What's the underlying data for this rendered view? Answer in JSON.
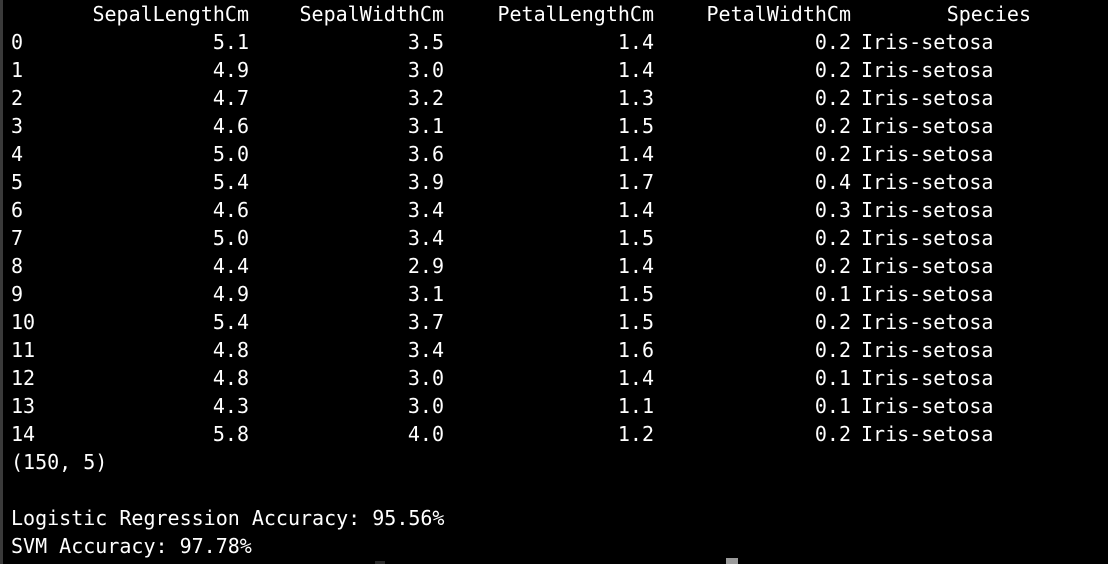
{
  "table": {
    "columns": [
      "SepalLengthCm",
      "SepalWidthCm",
      "PetalLengthCm",
      "PetalWidthCm",
      "Species"
    ],
    "rows": [
      {
        "index": "0",
        "sl": "5.1",
        "sw": "3.5",
        "pl": "1.4",
        "pw": "0.2",
        "species": "Iris-setosa"
      },
      {
        "index": "1",
        "sl": "4.9",
        "sw": "3.0",
        "pl": "1.4",
        "pw": "0.2",
        "species": "Iris-setosa"
      },
      {
        "index": "2",
        "sl": "4.7",
        "sw": "3.2",
        "pl": "1.3",
        "pw": "0.2",
        "species": "Iris-setosa"
      },
      {
        "index": "3",
        "sl": "4.6",
        "sw": "3.1",
        "pl": "1.5",
        "pw": "0.2",
        "species": "Iris-setosa"
      },
      {
        "index": "4",
        "sl": "5.0",
        "sw": "3.6",
        "pl": "1.4",
        "pw": "0.2",
        "species": "Iris-setosa"
      },
      {
        "index": "5",
        "sl": "5.4",
        "sw": "3.9",
        "pl": "1.7",
        "pw": "0.4",
        "species": "Iris-setosa"
      },
      {
        "index": "6",
        "sl": "4.6",
        "sw": "3.4",
        "pl": "1.4",
        "pw": "0.3",
        "species": "Iris-setosa"
      },
      {
        "index": "7",
        "sl": "5.0",
        "sw": "3.4",
        "pl": "1.5",
        "pw": "0.2",
        "species": "Iris-setosa"
      },
      {
        "index": "8",
        "sl": "4.4",
        "sw": "2.9",
        "pl": "1.4",
        "pw": "0.2",
        "species": "Iris-setosa"
      },
      {
        "index": "9",
        "sl": "4.9",
        "sw": "3.1",
        "pl": "1.5",
        "pw": "0.1",
        "species": "Iris-setosa"
      },
      {
        "index": "10",
        "sl": "5.4",
        "sw": "3.7",
        "pl": "1.5",
        "pw": "0.2",
        "species": "Iris-setosa"
      },
      {
        "index": "11",
        "sl": "4.8",
        "sw": "3.4",
        "pl": "1.6",
        "pw": "0.2",
        "species": "Iris-setosa"
      },
      {
        "index": "12",
        "sl": "4.8",
        "sw": "3.0",
        "pl": "1.4",
        "pw": "0.1",
        "species": "Iris-setosa"
      },
      {
        "index": "13",
        "sl": "4.3",
        "sw": "3.0",
        "pl": "1.1",
        "pw": "0.1",
        "species": "Iris-setosa"
      },
      {
        "index": "14",
        "sl": "5.8",
        "sw": "4.0",
        "pl": "1.2",
        "pw": "0.2",
        "species": "Iris-setosa"
      }
    ]
  },
  "shape_line": "(150, 5)",
  "logistic_line": "Logistic Regression Accuracy: 95.56%",
  "svm_line": "SVM Accuracy: 97.78%",
  "colors": {
    "background": "#000000",
    "text": "#ffffff",
    "cursor": "#9a9a9a"
  }
}
